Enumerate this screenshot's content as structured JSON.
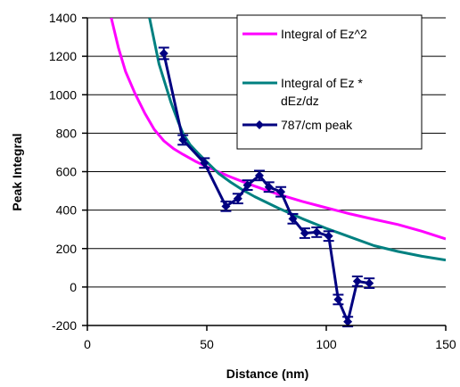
{
  "chart_data": {
    "type": "line",
    "title": "",
    "xlabel": "Distance  (nm)",
    "ylabel": "Peak Integral",
    "xlim": [
      0,
      150
    ],
    "ylim": [
      -200,
      1400
    ],
    "x_ticks": [
      0,
      50,
      100,
      150
    ],
    "y_ticks": [
      -200,
      0,
      200,
      400,
      600,
      800,
      1000,
      1200,
      1400
    ],
    "x_tick_labels": [
      "0",
      "50",
      "100",
      "150"
    ],
    "y_tick_labels": [
      "-200",
      "0",
      "200",
      "400",
      "600",
      "800",
      "1000",
      "1200",
      "1400"
    ],
    "grid": "horizontal",
    "legend_position": "top-right",
    "series": [
      {
        "name": "Integral of Ez^2",
        "color": "#ff00ff",
        "marker": "none",
        "x": [
          10,
          13,
          16,
          20,
          24,
          28,
          32,
          36,
          40,
          45,
          50,
          55,
          60,
          65,
          70,
          75,
          80,
          90,
          100,
          110,
          120,
          130,
          140,
          150
        ],
        "y": [
          1400,
          1245,
          1120,
          1005,
          905,
          820,
          760,
          720,
          690,
          655,
          625,
          598,
          572,
          548,
          525,
          503,
          482,
          445,
          412,
          380,
          352,
          325,
          290,
          250
        ]
      },
      {
        "name": "Integral of Ez * dEz/dz",
        "color": "#008080",
        "marker": "none",
        "x": [
          26,
          30,
          33,
          35,
          38,
          40,
          43,
          46,
          50,
          55,
          60,
          65,
          70,
          80,
          90,
          100,
          110,
          120,
          130,
          140,
          150
        ],
        "y": [
          1400,
          1160,
          1040,
          960,
          860,
          800,
          740,
          700,
          650,
          590,
          545,
          505,
          470,
          410,
          355,
          305,
          260,
          215,
          185,
          160,
          140
        ]
      },
      {
        "name": "787/cm  peak",
        "color": "#000080",
        "marker": "diamond",
        "error_bars": true,
        "x": [
          32,
          40,
          49,
          58,
          63,
          67,
          72,
          76,
          81,
          86,
          91,
          96,
          101,
          105,
          109,
          113,
          118
        ],
        "y": [
          1215,
          765,
          645,
          420,
          460,
          530,
          580,
          520,
          495,
          355,
          280,
          285,
          265,
          -65,
          -180,
          30,
          20
        ],
        "errors": [
          30,
          25,
          25,
          25,
          25,
          25,
          25,
          25,
          25,
          25,
          25,
          25,
          25,
          25,
          25,
          25,
          25
        ]
      }
    ]
  }
}
